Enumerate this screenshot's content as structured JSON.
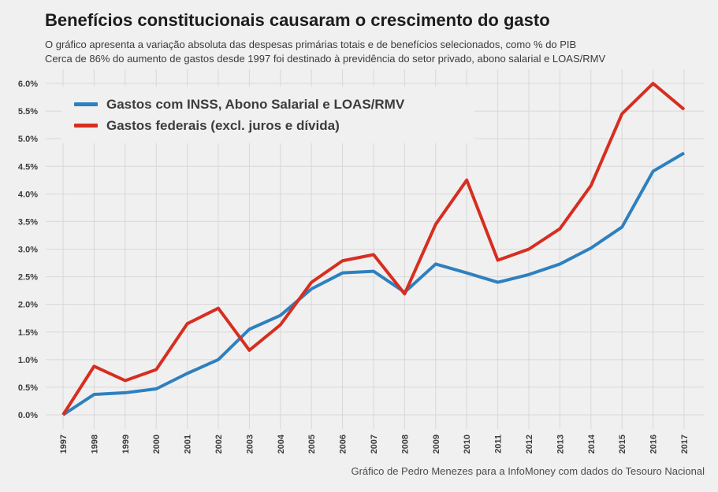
{
  "header": {
    "title": "Benefícios constitucionais causaram o crescimento do gasto",
    "subtitle_line1": "O gráfico apresenta a variação absoluta das despesas primárias totais e de benefícios selecionados, como % do PIB",
    "subtitle_line2": "Cerca de 86% do aumento de gastos desde 1997 foi destinado à previdência do setor privado, abono salarial e LOAS/RMV"
  },
  "legend": {
    "items": [
      {
        "label": "Gastos com INSS, Abono Salarial e LOAS/RMV",
        "color": "#2E80BF"
      },
      {
        "label": "Gastos federais (excl. juros e dívida)",
        "color": "#D62E20"
      }
    ]
  },
  "footer": {
    "credit": "Gráfico de Pedro Menezes para a InfoMoney com dados do Tesouro Nacional"
  },
  "colors": {
    "background": "#F0F0F0",
    "gridline": "#D8D8D8",
    "series_blue": "#2E80BF",
    "series_red": "#D62E20",
    "text_dark": "#1C1C1C",
    "text_gray": "#3C3C3C"
  },
  "chart_data": {
    "type": "line",
    "categories": [
      "1997",
      "1998",
      "1999",
      "2000",
      "2001",
      "2002",
      "2003",
      "2004",
      "2005",
      "2006",
      "2007",
      "2008",
      "2009",
      "2010",
      "2011",
      "2012",
      "2013",
      "2014",
      "2015",
      "2016",
      "2017"
    ],
    "series": [
      {
        "name": "Gastos com INSS, Abono Salarial e LOAS/RMV",
        "color": "#2E80BF",
        "values": [
          0.0,
          0.37,
          0.4,
          0.47,
          0.75,
          1.0,
          1.55,
          1.8,
          2.28,
          2.57,
          2.6,
          2.22,
          2.73,
          2.57,
          2.4,
          2.54,
          2.73,
          3.02,
          3.4,
          4.41,
          4.74
        ]
      },
      {
        "name": "Gastos federais (excl. juros e dívida)",
        "color": "#D62E20",
        "values": [
          0.0,
          0.88,
          0.62,
          0.82,
          1.65,
          1.93,
          1.17,
          1.63,
          2.4,
          2.79,
          2.9,
          2.19,
          3.45,
          4.25,
          2.8,
          3.0,
          3.37,
          4.15,
          5.45,
          6.0,
          5.53
        ]
      }
    ],
    "title": "Benefícios constitucionais causaram o crescimento do gasto",
    "xlabel": "",
    "ylabel": "",
    "unit": "% do PIB",
    "ylim": [
      0,
      6
    ],
    "y_ticks": [
      "0.0%",
      "0.5%",
      "1.0%",
      "1.5%",
      "2.0%",
      "2.5%",
      "3.0%",
      "3.5%",
      "4.0%",
      "4.5%",
      "5.0%",
      "5.5%",
      "6.0%"
    ],
    "grid": true,
    "x_tick_rotation": 90,
    "legend_position": "top-left-inside"
  }
}
